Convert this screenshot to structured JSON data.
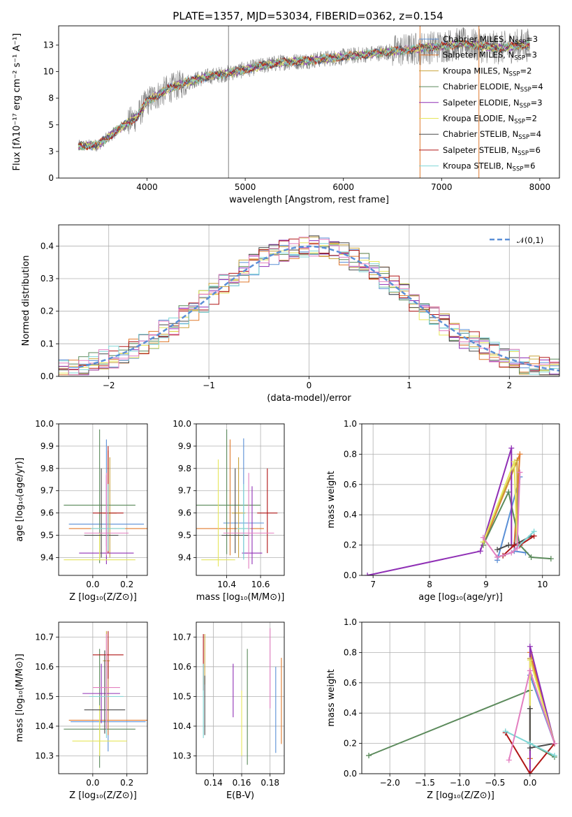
{
  "figure": {
    "title": "PLATE=1357, MJD=53034, FIBERID=0362, z=0.154"
  },
  "legend_spectrum": [
    {
      "label": "Chabrier MILES, N",
      "sub": "SSP",
      "suffix": "=3",
      "color": "#5a8fd6"
    },
    {
      "label": "Salpeter MILES, N",
      "sub": "SSP",
      "suffix": "=3",
      "color": "#e07a2e"
    },
    {
      "label": "Kroupa MILES, N",
      "sub": "SSP",
      "suffix": "=2",
      "color": "#c8a23a"
    },
    {
      "label": "Chabrier ELODIE, N",
      "sub": "SSP",
      "suffix": "=4",
      "color": "#5b8a5b"
    },
    {
      "label": "Salpeter ELODIE, N",
      "sub": "SSP",
      "suffix": "=3",
      "color": "#8f2fb5"
    },
    {
      "label": "Kroupa ELODIE, N",
      "sub": "SSP",
      "suffix": "=2",
      "color": "#e6e65a"
    },
    {
      "label": "Chabrier STELIB, N",
      "sub": "SSP",
      "suffix": "=4",
      "color": "#4a4a4a"
    },
    {
      "label": "Salpeter STELIB, N",
      "sub": "SSP",
      "suffix": "=6",
      "color": "#b01515"
    },
    {
      "label": "Kroupa STELIB, N",
      "sub": "SSP",
      "suffix": "=6",
      "color": "#7fd6d6"
    }
  ],
  "model_colors": [
    "#5a8fd6",
    "#e07a2e",
    "#c8a23a",
    "#5b8a5b",
    "#8f2fb5",
    "#e6e65a",
    "#4a4a4a",
    "#b01515",
    "#7fd6d6",
    "#e37fc0"
  ],
  "chart_data": [
    {
      "id": "spectrum",
      "type": "line",
      "xlabel": "wavelength [Angstrom, rest frame]",
      "ylabel": "Flux [fλ10⁻¹⁷ erg cm⁻² s⁻¹ A⁻¹]",
      "xlim": [
        3100,
        8200
      ],
      "ylim": [
        0,
        14.3
      ],
      "xticks": [
        4000,
        5000,
        6000,
        7000,
        8000
      ],
      "yticks": [
        0.0,
        2.5,
        5.0,
        7.5,
        10.0,
        12.5
      ],
      "grid": false,
      "legend_position": "top-right",
      "data_color": "#808080",
      "continuum": {
        "x": [
          3300,
          3500,
          3700,
          3900,
          4000,
          4200,
          4400,
          4600,
          4800,
          5000,
          5200,
          5400,
          5600,
          5800,
          6000,
          6200,
          6400,
          6600,
          6800,
          7000,
          7200,
          7400,
          7600,
          7800
        ],
        "y": [
          3.0,
          3.1,
          4.5,
          5.8,
          7.2,
          8.3,
          9.0,
          9.5,
          9.8,
          10.2,
          10.6,
          10.9,
          11.0,
          11.2,
          11.4,
          11.6,
          11.8,
          12.0,
          12.2,
          12.4,
          12.6,
          12.4,
          12.2,
          12.5
        ]
      },
      "vlines": [
        4830,
        6780,
        7380
      ],
      "vline_drop_colors": [
        "#808080",
        "#e07a2e",
        "#e07a2e"
      ]
    },
    {
      "id": "residual-histogram",
      "type": "step",
      "xlabel": "(data-model)/error",
      "ylabel": "Normed distribution",
      "xlim": [
        -2.5,
        2.5
      ],
      "ylim": [
        0,
        0.465
      ],
      "xticks": [
        -2,
        -1,
        0,
        1,
        2
      ],
      "yticks": [
        0.0,
        0.1,
        0.2,
        0.3,
        0.4
      ],
      "grid": true,
      "legend_position": "top-right",
      "gaussian_label": "𝒩(0,1)",
      "gaussian_color": "#5b8fd6",
      "bin_width": 0.1,
      "bin_start": -2.5
    },
    {
      "id": "age-vs-Z",
      "type": "errorbar",
      "xlabel": "Z [log₁₀(Z/Z⊙)]",
      "ylabel": "age  [log₁₀(age/yr)]",
      "xlim": [
        -0.2,
        0.32
      ],
      "ylim": [
        9.32,
        10.0
      ],
      "xticks": [
        0.0,
        0.2
      ],
      "yticks": [
        9.4,
        9.5,
        9.6,
        9.7,
        9.8,
        9.9,
        10.0
      ],
      "grid": true,
      "points": [
        {
          "x": 0.08,
          "y": 9.55,
          "xerr": 0.22,
          "yerr": [
            0.1,
            0.38
          ]
        },
        {
          "x": 0.09,
          "y": 9.53,
          "xerr": 0.23,
          "yerr": [
            0.1,
            0.35
          ]
        },
        {
          "x": 0.1,
          "y": 9.6,
          "xerr": 0.04,
          "yerr": [
            0.2,
            0.25
          ]
        },
        {
          "x": 0.04,
          "y": 9.635,
          "xerr": 0.21,
          "yerr": [
            0.26,
            0.34
          ]
        },
        {
          "x": 0.08,
          "y": 9.42,
          "xerr": 0.16,
          "yerr": [
            0.05,
            0.35
          ]
        },
        {
          "x": 0.04,
          "y": 9.39,
          "xerr": 0.21,
          "yerr": [
            0.0,
            0.12
          ]
        },
        {
          "x": 0.05,
          "y": 9.5,
          "xerr": 0.1,
          "yerr": [
            0.1,
            0.3
          ]
        },
        {
          "x": 0.09,
          "y": 9.6,
          "xerr": 0.09,
          "yerr": [
            0.18,
            0.3
          ]
        },
        {
          "x": 0.09,
          "y": 9.53,
          "xerr": 0.1,
          "yerr": [
            0.1,
            0.2
          ]
        },
        {
          "x": 0.08,
          "y": 9.51,
          "xerr": 0.13,
          "yerr": [
            0.1,
            0.27
          ]
        }
      ]
    },
    {
      "id": "age-vs-mass",
      "type": "errorbar",
      "xlabel": "mass [log₁₀(M/M⊙)]",
      "ylabel": "",
      "xlim": [
        10.22,
        10.74
      ],
      "ylim": [
        9.32,
        10.0
      ],
      "xticks": [
        10.4,
        10.6
      ],
      "yticks": [
        9.4,
        9.5,
        9.6,
        9.7,
        9.8,
        9.9,
        10.0
      ],
      "grid": true,
      "points": [
        {
          "x": 10.5,
          "y": 9.555,
          "xerr": 0.12,
          "yerr": [
            0.16,
            0.38
          ]
        },
        {
          "x": 10.42,
          "y": 9.53,
          "xerr": 0.2,
          "yerr": [
            0.12,
            0.4
          ]
        },
        {
          "x": 10.47,
          "y": 9.6,
          "xerr": 0.04,
          "yerr": [
            0.2,
            0.25
          ]
        },
        {
          "x": 10.4,
          "y": 9.635,
          "xerr": 0.2,
          "yerr": [
            0.22,
            0.34
          ]
        },
        {
          "x": 10.55,
          "y": 9.42,
          "xerr": 0.06,
          "yerr": [
            0.05,
            0.3
          ]
        },
        {
          "x": 10.35,
          "y": 9.39,
          "xerr": 0.1,
          "yerr": [
            0.03,
            0.45
          ]
        },
        {
          "x": 10.45,
          "y": 9.5,
          "xerr": 0.08,
          "yerr": [
            0.08,
            0.3
          ]
        },
        {
          "x": 10.64,
          "y": 9.6,
          "xerr": 0.06,
          "yerr": [
            0.18,
            0.2
          ]
        },
        {
          "x": 10.5,
          "y": 9.53,
          "xerr": 0.04,
          "yerr": [
            0.14,
            0.2
          ]
        },
        {
          "x": 10.53,
          "y": 9.51,
          "xerr": 0.15,
          "yerr": [
            0.16,
            0.27
          ]
        }
      ]
    },
    {
      "id": "mass-weight-vs-age",
      "type": "line",
      "xlabel": "age  [log₁₀(age/yr)]",
      "ylabel": "mass weight",
      "xlim": [
        6.8,
        10.3
      ],
      "ylim": [
        0,
        1.0
      ],
      "xticks": [
        7,
        8,
        9,
        10
      ],
      "yticks": [
        0.0,
        0.2,
        0.4,
        0.6,
        0.8,
        1.0
      ],
      "grid": true,
      "series": [
        {
          "x": [
            9.2,
            9.6,
            9.5,
            9.7
          ],
          "y": [
            0.1,
            0.65,
            0.16,
            0.15
          ]
        },
        {
          "x": [
            8.95,
            9.6,
            9.5
          ],
          "y": [
            0.2,
            0.8,
            0.2
          ]
        },
        {
          "x": [
            8.95,
            9.55,
            9.55
          ],
          "y": [
            0.22,
            0.76,
            0.2
          ]
        },
        {
          "x": [
            8.95,
            9.4,
            9.6,
            9.8,
            10.15
          ],
          "y": [
            0.2,
            0.55,
            0.2,
            0.12,
            0.11
          ]
        },
        {
          "x": [
            6.9,
            8.9,
            9.45,
            9.45
          ],
          "y": [
            0.0,
            0.16,
            0.84,
            0.2
          ]
        },
        {
          "x": [
            8.95,
            9.5,
            9.55
          ],
          "y": [
            0.22,
            0.75,
            0.2
          ]
        },
        {
          "x": [
            9.2,
            9.4,
            9.5,
            9.8
          ],
          "y": [
            0.17,
            0.2,
            0.2,
            0.26
          ]
        },
        {
          "x": [
            9.3,
            9.5,
            9.6,
            9.85
          ],
          "y": [
            0.13,
            0.2,
            0.2,
            0.26
          ]
        },
        {
          "x": [
            9.2,
            9.45,
            9.85
          ],
          "y": [
            0.12,
            0.15,
            0.29
          ]
        },
        {
          "x": [
            8.95,
            9.2,
            9.45,
            9.55,
            9.6
          ],
          "y": [
            0.25,
            0.12,
            0.15,
            0.18,
            0.68
          ]
        }
      ]
    },
    {
      "id": "mass-vs-Z",
      "type": "errorbar",
      "xlabel": "Z [log₁₀(Z/Z⊙)]",
      "ylabel": "mass [log₁₀(M/M⊙)]",
      "xlim": [
        -0.2,
        0.32
      ],
      "ylim": [
        10.24,
        10.75
      ],
      "xticks": [
        0.0,
        0.2
      ],
      "yticks": [
        10.3,
        10.4,
        10.5,
        10.6,
        10.7
      ],
      "grid": true,
      "points": [
        {
          "x": 0.09,
          "y": 10.415,
          "xerr": 0.22,
          "yerr": [
            0.1,
            0.2
          ]
        },
        {
          "x": 0.09,
          "y": 10.42,
          "xerr": 0.23,
          "yerr": [
            0.05,
            0.2
          ]
        },
        {
          "x": 0.08,
          "y": 10.62,
          "xerr": 0.02,
          "yerr": [
            0.1,
            0.1
          ]
        },
        {
          "x": 0.04,
          "y": 10.39,
          "xerr": 0.21,
          "yerr": [
            0.13,
            0.27
          ]
        },
        {
          "x": 0.05,
          "y": 10.51,
          "xerr": 0.11,
          "yerr": [
            0.1,
            0.1
          ]
        },
        {
          "x": 0.04,
          "y": 10.35,
          "xerr": 0.16,
          "yerr": [
            0.05,
            0.12
          ]
        },
        {
          "x": 0.07,
          "y": 10.455,
          "xerr": 0.12,
          "yerr": [
            0.08,
            0.2
          ]
        },
        {
          "x": 0.09,
          "y": 10.64,
          "xerr": 0.09,
          "yerr": [
            0.08,
            0.08
          ]
        },
        {
          "x": 0.08,
          "y": 10.5,
          "xerr": 0.1,
          "yerr": [
            0.14,
            0.1
          ]
        },
        {
          "x": 0.08,
          "y": 10.53,
          "xerr": 0.08,
          "yerr": [
            0.14,
            0.18
          ]
        }
      ]
    },
    {
      "id": "mass-vs-EBV",
      "type": "errorbar",
      "xlabel": "E(B-V)",
      "ylabel": "",
      "xlim": [
        0.128,
        0.19
      ],
      "ylim": [
        10.24,
        10.75
      ],
      "xticks": [
        0.14,
        0.16,
        0.18
      ],
      "yticks": [
        10.3,
        10.4,
        10.5,
        10.6,
        10.7
      ],
      "grid": true,
      "points": [
        {
          "x": 0.184,
          "y": 10.5,
          "xerr": 0.0,
          "yerr": [
            0.19,
            0.1
          ]
        },
        {
          "x": 0.188,
          "y": 10.48,
          "xerr": 0.0,
          "yerr": [
            0.14,
            0.15
          ]
        },
        {
          "x": 0.134,
          "y": 10.64,
          "xerr": 0.0,
          "yerr": [
            0.1,
            0.07
          ]
        },
        {
          "x": 0.164,
          "y": 10.47,
          "xerr": 0.0,
          "yerr": [
            0.2,
            0.19
          ]
        },
        {
          "x": 0.154,
          "y": 10.52,
          "xerr": 0.0,
          "yerr": [
            0.09,
            0.09
          ]
        },
        {
          "x": 0.16,
          "y": 10.41,
          "xerr": 0.0,
          "yerr": [
            0.11,
            0.11
          ]
        },
        {
          "x": 0.134,
          "y": 10.45,
          "xerr": 0.0,
          "yerr": [
            0.08,
            0.12
          ]
        },
        {
          "x": 0.133,
          "y": 10.62,
          "xerr": 0.0,
          "yerr": [
            0.1,
            0.09
          ]
        },
        {
          "x": 0.133,
          "y": 10.48,
          "xerr": 0.0,
          "yerr": [
            0.12,
            0.13
          ]
        },
        {
          "x": 0.18,
          "y": 10.6,
          "xerr": 0.0,
          "yerr": [
            0.14,
            0.13
          ]
        }
      ]
    },
    {
      "id": "mass-weight-vs-Z",
      "type": "line",
      "xlabel": "Z [log₁₀(Z/Z⊙)]",
      "ylabel": "mass weight",
      "xlim": [
        -2.4,
        0.42
      ],
      "ylim": [
        0,
        1.0
      ],
      "xticks": [
        -2.0,
        -1.5,
        -1.0,
        -0.5,
        0.0
      ],
      "yticks": [
        0.0,
        0.2,
        0.4,
        0.6,
        0.8,
        1.0
      ],
      "grid": true,
      "series": [
        {
          "x": [
            0.0,
            0.0,
            0.35
          ],
          "y": [
            0.2,
            0.65,
            0.2
          ]
        },
        {
          "x": [
            0.0,
            0.0,
            0.35
          ],
          "y": [
            0.1,
            0.8,
            0.2
          ]
        },
        {
          "x": [
            0.0,
            0.35
          ],
          "y": [
            0.76,
            0.2
          ]
        },
        {
          "x": [
            -2.3,
            0.0,
            0.0,
            0.35
          ],
          "y": [
            0.12,
            0.55,
            0.2,
            0.11
          ]
        },
        {
          "x": [
            0.0,
            0.0,
            0.35
          ],
          "y": [
            0.0,
            0.84,
            0.2
          ]
        },
        {
          "x": [
            0.0,
            0.0,
            0.35
          ],
          "y": [
            0.2,
            0.75,
            0.2
          ]
        },
        {
          "x": [
            0.0,
            0.0,
            0.35
          ],
          "y": [
            0.43,
            0.17,
            0.2
          ]
        },
        {
          "x": [
            -0.35,
            0.0,
            0.35
          ],
          "y": [
            0.27,
            0.0,
            0.2
          ]
        },
        {
          "x": [
            -0.35,
            0.0,
            0.35
          ],
          "y": [
            0.28,
            0.2,
            0.12
          ]
        },
        {
          "x": [
            -0.3,
            0.0,
            0.35
          ],
          "y": [
            0.09,
            0.68,
            0.2
          ]
        }
      ]
    }
  ]
}
